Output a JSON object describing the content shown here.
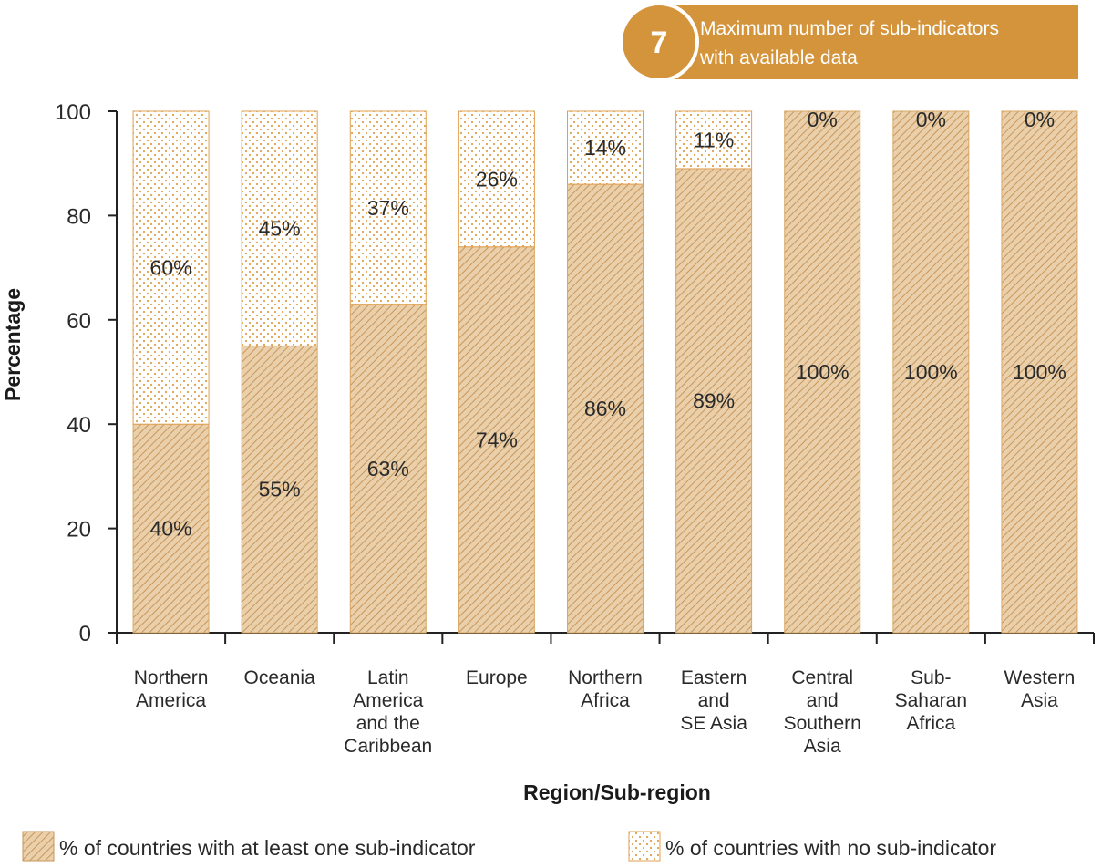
{
  "banner": {
    "number": "7",
    "line1": "Maximum number of sub-indicators",
    "line2": "with available data"
  },
  "colors": {
    "accent": "#D4943C",
    "hatch_fill": "#E9CFAA",
    "hatch_line": "#C9965A",
    "dot_fill": "#FFFFFF",
    "dot": "#E0A050",
    "axis": "#222222"
  },
  "chart_data": {
    "type": "bar",
    "stacked": true,
    "categories": [
      [
        "Northern",
        "America"
      ],
      [
        "Oceania"
      ],
      [
        "Latin",
        "America",
        "and the",
        "Caribbean"
      ],
      [
        "Europe"
      ],
      [
        "Northern",
        "Africa"
      ],
      [
        "Eastern",
        "and",
        "SE Asia"
      ],
      [
        "Central",
        "and",
        "Southern",
        "Asia"
      ],
      [
        "Sub-",
        "Saharan",
        "Africa"
      ],
      [
        "Western",
        "Asia"
      ]
    ],
    "series": [
      {
        "name": "% of countries with at least one sub-indicator",
        "pattern": "hatch",
        "values": [
          40,
          55,
          63,
          74,
          86,
          89,
          100,
          100,
          100
        ],
        "labels": [
          "40%",
          "55%",
          "63%",
          "74%",
          "86%",
          "89%",
          "100%",
          "100%",
          "100%"
        ]
      },
      {
        "name": "% of countries with no sub-indicator",
        "pattern": "dots",
        "values": [
          60,
          45,
          37,
          26,
          14,
          11,
          0,
          0,
          0
        ],
        "labels": [
          "60%",
          "45%",
          "37%",
          "26%",
          "14%",
          "11%",
          "0%",
          "0%",
          "0%"
        ]
      }
    ],
    "xlabel": "Region/Sub-region",
    "ylabel": "Percentage",
    "ylim": [
      0,
      100
    ],
    "yticks": [
      0,
      20,
      40,
      60,
      80,
      100
    ],
    "grid": false,
    "legend_position": "bottom"
  }
}
